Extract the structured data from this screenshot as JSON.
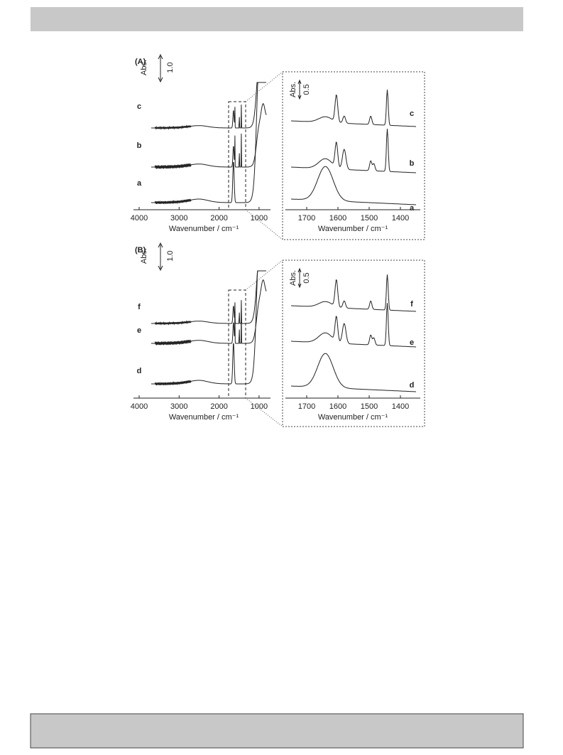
{
  "figure": {
    "panels": [
      {
        "label": "(A)",
        "main": {
          "xticks": [
            4000,
            3000,
            2000,
            1000
          ],
          "xlabel": "Wavenumber / cm⁻¹",
          "scale_label": "Abs.",
          "scale_value": "1.0",
          "traces": [
            "c",
            "b",
            "a"
          ]
        },
        "inset": {
          "xticks": [
            1700,
            1600,
            1500,
            1400
          ],
          "xlabel": "Wavenumber / cm⁻¹",
          "scale_label": "Abs.",
          "scale_value": "0.5",
          "traces": [
            "c",
            "b",
            "a"
          ]
        }
      },
      {
        "label": "(B)",
        "main": {
          "xticks": [
            4000,
            3000,
            2000,
            1000
          ],
          "xlabel": "Wavenumber / cm⁻¹",
          "scale_label": "Abs.",
          "scale_value": "1.0",
          "traces": [
            "f",
            "e",
            "d"
          ]
        },
        "inset": {
          "xticks": [
            1700,
            1600,
            1500,
            1400
          ],
          "xlabel": "Wavenumber / cm⁻¹",
          "scale_label": "Abs.",
          "scale_value": "0.5",
          "traces": [
            "f",
            "e",
            "d"
          ]
        }
      }
    ]
  }
}
